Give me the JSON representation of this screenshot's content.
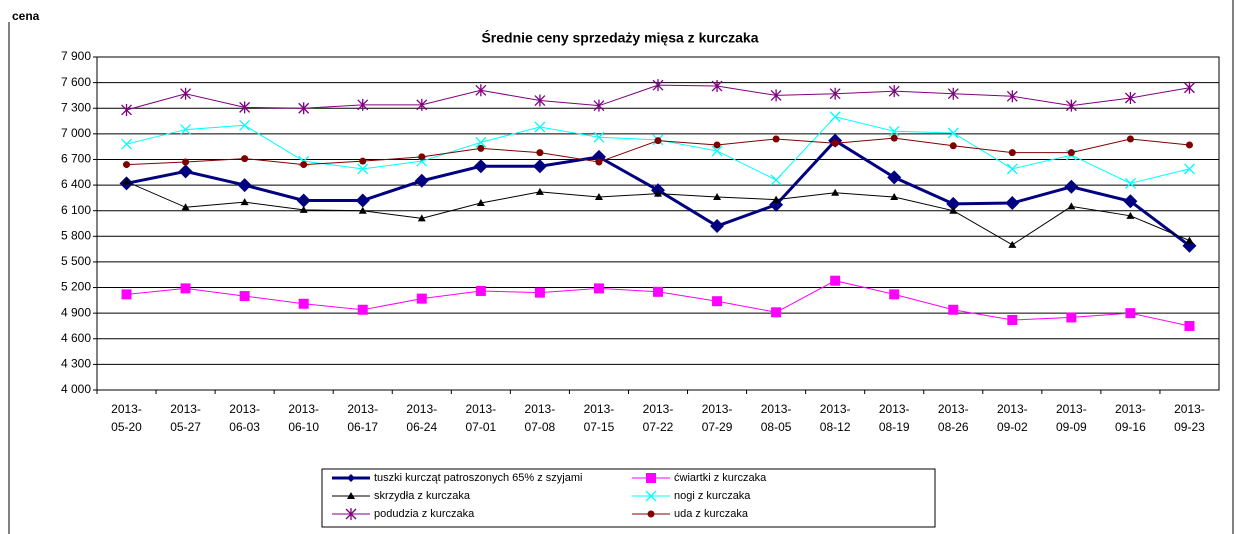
{
  "chart_data": {
    "type": "line",
    "title": "Średnie ceny sprzedaży mięsa z kurczaka",
    "y_label": "cena",
    "categories": [
      "2013-05-20",
      "2013-05-27",
      "2013-06-03",
      "2013-06-10",
      "2013-06-17",
      "2013-06-24",
      "2013-07-01",
      "2013-07-08",
      "2013-07-15",
      "2013-07-22",
      "2013-07-29",
      "2013-08-05",
      "2013-08-12",
      "2013-08-19",
      "2013-08-26",
      "2013-09-02",
      "2013-09-09",
      "2013-09-16",
      "2013-09-23"
    ],
    "ylim": [
      4000,
      7900
    ],
    "yticks": [
      {
        "value": 4000,
        "label": "4 000"
      },
      {
        "value": 4300,
        "label": "4 300"
      },
      {
        "value": 4600,
        "label": "4 600"
      },
      {
        "value": 4900,
        "label": "4 900"
      },
      {
        "value": 5200,
        "label": "5 200"
      },
      {
        "value": 5500,
        "label": "5 500"
      },
      {
        "value": 5800,
        "label": "5 800"
      },
      {
        "value": 6100,
        "label": "6 100"
      },
      {
        "value": 6400,
        "label": "6 400"
      },
      {
        "value": 6700,
        "label": "6 700"
      },
      {
        "value": 7000,
        "label": "7 000"
      },
      {
        "value": 7300,
        "label": "7 300"
      },
      {
        "value": 7600,
        "label": "7 600"
      },
      {
        "value": 7900,
        "label": "7 900"
      }
    ],
    "grid": true,
    "legend": "bottom",
    "series": [
      {
        "name": "tuszki kurcząt patroszonych 65% z szyjami",
        "color": "#000080",
        "marker": "diamond",
        "width": 3,
        "values": [
          6420,
          6560,
          6400,
          6220,
          6220,
          6450,
          6620,
          6620,
          6730,
          6340,
          5920,
          6170,
          6920,
          6490,
          6180,
          6190,
          6380,
          6210,
          5690
        ]
      },
      {
        "name": "ćwiartki z kurczaka",
        "color": "#ff00ff",
        "marker": "square",
        "width": 1,
        "values": [
          5120,
          5190,
          5100,
          5010,
          4940,
          5070,
          5160,
          5140,
          5190,
          5150,
          5040,
          4910,
          5280,
          5120,
          4940,
          4820,
          4850,
          4900,
          4750
        ]
      },
      {
        "name": "skrzydła z kurczaka",
        "color": "#000000",
        "marker": "triangle",
        "width": 1,
        "values": [
          6440,
          6140,
          6200,
          6110,
          6100,
          6010,
          6190,
          6320,
          6260,
          6300,
          6260,
          6230,
          6310,
          6260,
          6100,
          5700,
          6150,
          6040,
          5750
        ]
      },
      {
        "name": "nogi z kurczaka",
        "color": "#00ffff",
        "marker": "x",
        "width": 1,
        "values": [
          6880,
          7050,
          7100,
          6680,
          6590,
          6680,
          6900,
          7080,
          6960,
          6930,
          6800,
          6460,
          7200,
          7030,
          7010,
          6590,
          6750,
          6420,
          6590
        ]
      },
      {
        "name": "podudzia z kurczaka",
        "color": "#800080",
        "marker": "star",
        "width": 1,
        "values": [
          7280,
          7470,
          7310,
          7300,
          7340,
          7340,
          7510,
          7390,
          7330,
          7570,
          7560,
          7450,
          7470,
          7500,
          7470,
          7440,
          7330,
          7420,
          7540
        ]
      },
      {
        "name": "uda z kurczaka",
        "color": "#800000",
        "marker": "circle",
        "width": 1,
        "values": [
          6640,
          6670,
          6710,
          6640,
          6680,
          6730,
          6830,
          6780,
          6670,
          6920,
          6870,
          6940,
          6890,
          6950,
          6860,
          6780,
          6780,
          6940,
          6870
        ]
      }
    ]
  }
}
